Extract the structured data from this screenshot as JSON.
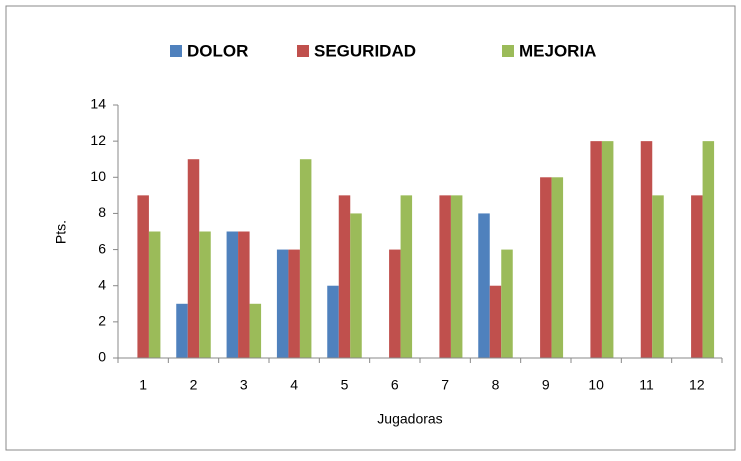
{
  "chart_data": {
    "type": "bar",
    "categories": [
      "1",
      "2",
      "3",
      "4",
      "5",
      "6",
      "7",
      "8",
      "9",
      "10",
      "11",
      "12"
    ],
    "series": [
      {
        "name": "DOLOR",
        "color": "#4f81bd",
        "values": [
          0,
          3,
          7,
          6,
          4,
          0,
          0,
          8,
          0,
          0,
          0,
          0
        ]
      },
      {
        "name": "SEGURIDAD",
        "color": "#c0504d",
        "values": [
          9,
          11,
          7,
          6,
          9,
          6,
          9,
          4,
          10,
          12,
          12,
          9
        ]
      },
      {
        "name": "MEJORIA",
        "color": "#9bbb59",
        "values": [
          7,
          7,
          3,
          11,
          8,
          9,
          9,
          6,
          10,
          12,
          9,
          12
        ]
      }
    ],
    "xlabel": "Jugadoras",
    "ylabel": "Pts.",
    "ylim": [
      0,
      14
    ],
    "yticks": [
      0,
      2,
      4,
      6,
      8,
      10,
      12,
      14
    ],
    "grid": false,
    "legend": "top"
  }
}
